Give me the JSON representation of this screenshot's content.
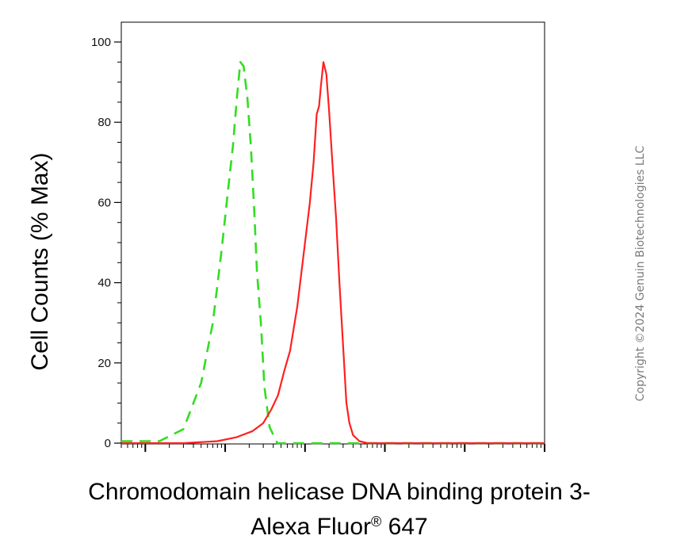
{
  "chart_data": {
    "type": "line",
    "title": "",
    "xlabel_line1": "Chromodomain helicase DNA binding protein 3-",
    "xlabel_line2_main": "Alexa Fluor",
    "xlabel_line2_reg": "®",
    "xlabel_line2_end": " 647",
    "ylabel": "Cell Counts (% Max)",
    "xscale": "log",
    "xlim": [
      0.5,
      100000
    ],
    "ylim": [
      0,
      105
    ],
    "yticks": [
      0,
      20,
      40,
      60,
      80,
      100
    ],
    "ytick_labels": [
      "0",
      "20",
      "40",
      "60",
      "80",
      "100"
    ],
    "legend": "none",
    "grid": false,
    "series": [
      {
        "color": "#33dd22",
        "style": "dashed",
        "x": [
          0.5,
          1.5,
          3,
          5,
          7,
          9,
          11,
          12.5,
          14,
          15.5,
          17,
          19,
          21,
          23,
          25,
          28,
          31,
          36,
          45,
          70,
          200,
          1000,
          10000,
          100000
        ],
        "y": [
          0.5,
          0.5,
          3.5,
          15,
          30,
          48,
          64,
          74,
          86,
          95,
          94,
          86,
          74,
          59,
          43,
          30,
          14,
          4,
          0,
          0,
          0,
          0,
          0,
          0
        ]
      },
      {
        "color": "#ff2020",
        "style": "solid",
        "x": [
          0.5,
          3,
          8,
          14,
          22,
          30,
          38,
          46,
          55,
          65,
          80,
          100,
          115,
          128,
          140,
          150,
          158,
          170,
          185,
          200,
          220,
          245,
          270,
          300,
          330,
          360,
          400,
          480,
          600,
          900,
          2000,
          10000,
          100000
        ],
        "y": [
          0,
          0,
          0.5,
          1.5,
          3,
          5,
          8.5,
          12,
          18,
          23,
          34,
          50,
          60,
          70,
          82,
          84,
          89,
          95,
          92,
          83,
          70,
          56,
          40,
          24,
          10,
          5,
          2,
          0.5,
          0,
          0,
          0,
          0,
          0
        ]
      }
    ]
  },
  "copyright": "Copyright ©2024 Genuin Biotechnologies LLC"
}
